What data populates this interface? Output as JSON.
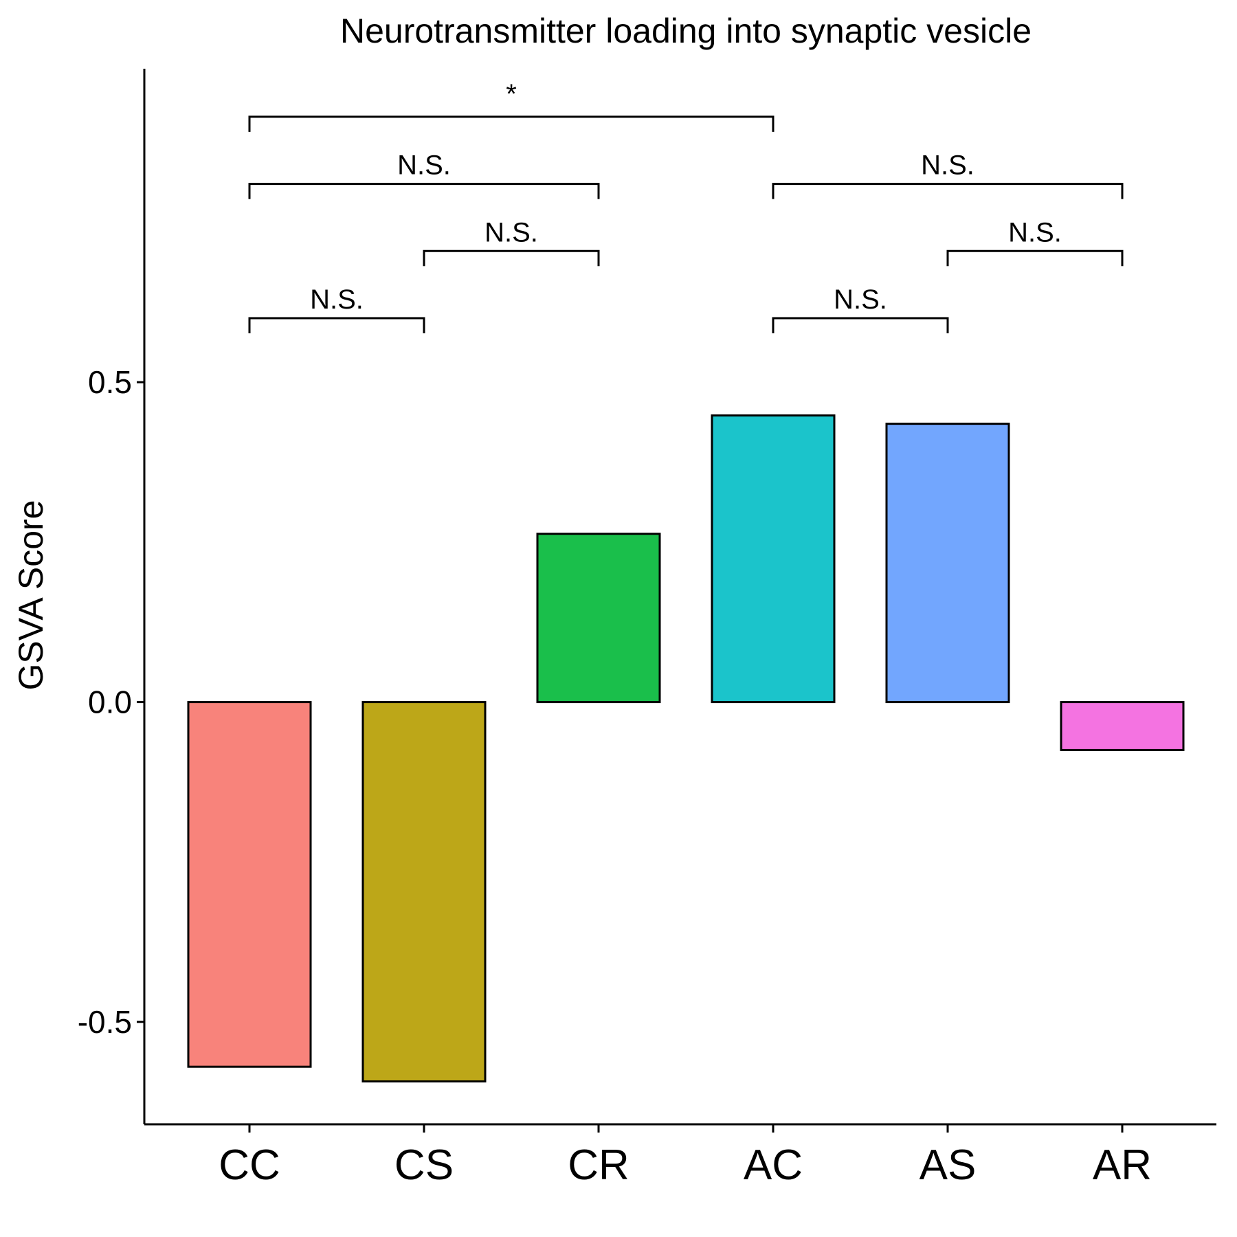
{
  "chart_data": {
    "type": "bar",
    "title": "Neurotransmitter loading into synaptic vesicle",
    "xlabel": "",
    "ylabel": "GSVA Score",
    "categories": [
      "CC",
      "CS",
      "CR",
      "AC",
      "AS",
      "AR"
    ],
    "values": [
      -0.57,
      -0.593,
      0.263,
      0.448,
      0.435,
      -0.075
    ],
    "colors": [
      "#F8837B",
      "#BDA718",
      "#1ABF4B",
      "#1BC4CB",
      "#72A6FE",
      "#F473E1"
    ],
    "ylim": [
      -0.66,
      0.99
    ],
    "yticks": [
      -0.5,
      0.0,
      0.5
    ],
    "ytick_labels": [
      "-0.5",
      "0.0",
      "0.5"
    ],
    "grid": false,
    "legend": "none",
    "comparisons": [
      {
        "from": "CC",
        "to": "CS",
        "label": "N.S.",
        "level": 0.6
      },
      {
        "from": "CS",
        "to": "CR",
        "label": "N.S.",
        "level": 0.705
      },
      {
        "from": "CC",
        "to": "CR",
        "label": "N.S.",
        "level": 0.81
      },
      {
        "from": "CC",
        "to": "AC",
        "label": "*",
        "level": 0.915
      },
      {
        "from": "AC",
        "to": "AS",
        "label": "N.S.",
        "level": 0.6
      },
      {
        "from": "AS",
        "to": "AR",
        "label": "N.S.",
        "level": 0.705
      },
      {
        "from": "AC",
        "to": "AR",
        "label": "N.S.",
        "level": 0.81
      }
    ]
  }
}
